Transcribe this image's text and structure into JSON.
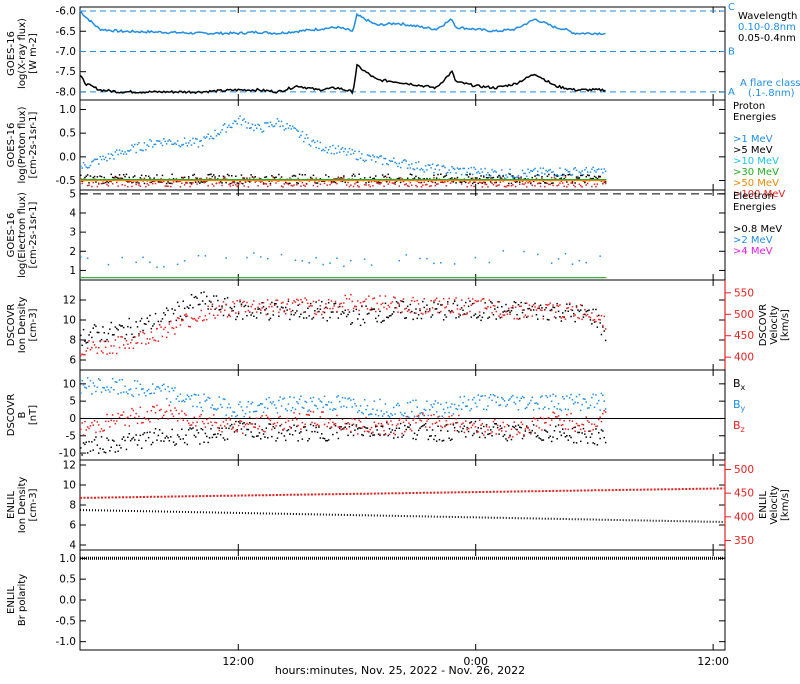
{
  "colors": {
    "blue": "#1f8ce6",
    "black": "#000000",
    "red": "#e62020",
    "cyan": "#19c8e6",
    "green": "#22aa22",
    "orange": "#e68c00",
    "magenta": "#e619e6"
  },
  "xaxis": {
    "label": "hours:minutes, Nov. 25, 2022 - Nov. 26, 2022",
    "ticks": [
      "12:00",
      "0:00",
      "12:00"
    ],
    "tick_hours": [
      12,
      24,
      36
    ],
    "range_hours": [
      4,
      36.6
    ],
    "data_end_hours": 30.6
  },
  "chart_data": [
    {
      "type": "line",
      "panel": "xray",
      "ylabel": [
        "GOES-16",
        "log(X-ray flux)",
        "[W m-2]"
      ],
      "ylim": [
        -8.2,
        -5.9
      ],
      "yticks": [
        -6.0,
        -6.5,
        -7.0,
        -7.5,
        -8.0
      ],
      "ytick_labels": [
        "-6.0",
        "-6.5",
        "-7.0",
        "-7.5",
        "-8.0"
      ],
      "flare_levels": [
        {
          "letter": "C",
          "value": -6
        },
        {
          "letter": "B",
          "value": -7
        },
        {
          "letter": "A",
          "value": -8
        }
      ],
      "legend": [
        "Wavelength",
        "0.10-0.8nm",
        "0.05-0.4nm"
      ],
      "annotation": [
        "A  flare class",
        "(.1-.8nm)"
      ],
      "series": [
        {
          "name": "0.10-0.8nm",
          "color": "blue",
          "x": [
            4,
            4.3,
            5,
            6,
            8,
            10,
            12,
            13,
            14,
            15,
            16,
            17,
            17.8,
            18,
            19,
            20,
            22,
            22.8,
            23,
            24,
            25,
            26,
            27,
            28,
            28.5,
            29,
            30,
            30.6
          ],
          "y": [
            -6.0,
            -6.15,
            -6.45,
            -6.5,
            -6.52,
            -6.55,
            -6.55,
            -6.52,
            -6.55,
            -6.5,
            -6.45,
            -6.4,
            -6.5,
            -6.1,
            -6.35,
            -6.3,
            -6.45,
            -6.2,
            -6.4,
            -6.45,
            -6.5,
            -6.45,
            -6.2,
            -6.4,
            -6.45,
            -6.55,
            -6.55,
            -6.55
          ]
        },
        {
          "name": "0.05-0.4nm",
          "color": "black",
          "x": [
            4,
            4.3,
            5,
            6,
            8,
            10,
            12,
            13,
            14,
            15,
            16,
            17,
            17.8,
            18,
            19,
            20,
            22,
            22.8,
            23,
            24,
            25,
            26,
            27,
            28,
            28.5,
            29,
            30,
            30.6
          ],
          "y": [
            -7.6,
            -7.8,
            -7.95,
            -8.0,
            -8.0,
            -8.0,
            -7.95,
            -7.95,
            -8.0,
            -7.85,
            -7.95,
            -7.9,
            -8.0,
            -7.35,
            -7.7,
            -7.75,
            -7.9,
            -7.5,
            -7.75,
            -7.85,
            -7.9,
            -7.8,
            -7.55,
            -7.85,
            -7.9,
            -7.95,
            -7.95,
            -7.95
          ]
        }
      ]
    },
    {
      "type": "scatter",
      "panel": "proton",
      "ylabel": [
        "GOES-16",
        "log(Proton flux)",
        "[cm-2s-1sr-1]"
      ],
      "ylim": [
        -0.7,
        1.2
      ],
      "yticks": [
        1.0,
        0.5,
        0.0,
        -0.5
      ],
      "ytick_labels": [
        "1.0",
        "0.5",
        "0.0",
        "-0.5"
      ],
      "legend": [
        "Proton",
        "Energies",
        ">1 MeV",
        ">5 MeV",
        ">10 MeV",
        ">30 MeV",
        ">50 MeV",
        ">100 MeV"
      ],
      "legend_colors": [
        "black",
        "black",
        "blue",
        "black",
        "cyan",
        "green",
        "orange",
        "red"
      ],
      "series": [
        {
          "name": ">1 MeV",
          "color": "blue",
          "x": [
            4,
            6,
            8,
            10,
            12,
            13,
            14,
            15,
            16,
            17,
            18,
            19,
            20,
            22,
            24,
            26,
            28,
            30,
            30.6
          ],
          "y": [
            -0.2,
            0.1,
            0.35,
            0.3,
            0.8,
            0.6,
            0.75,
            0.5,
            0.25,
            0.15,
            0.05,
            -0.05,
            -0.1,
            -0.25,
            -0.3,
            -0.35,
            -0.3,
            -0.3,
            -0.3
          ]
        },
        {
          "name": ">5 MeV",
          "color": "black",
          "x": [
            4,
            30.6
          ],
          "y": [
            -0.45,
            -0.45
          ]
        },
        {
          "name": ">100 MeV",
          "color": "red",
          "x": [
            4,
            30.6
          ],
          "y": [
            -0.52,
            -0.52
          ]
        }
      ]
    },
    {
      "type": "scatter",
      "panel": "electron",
      "ylabel": [
        "GOES-16",
        "log(Electron flux)",
        "[cm-2s-1sr-1]"
      ],
      "ylim": [
        0.5,
        5.2
      ],
      "yticks": [
        5,
        4,
        3,
        2,
        1
      ],
      "ytick_labels": [
        "5",
        "4",
        "3",
        "2",
        "1"
      ],
      "legend": [
        "Electron",
        "Energies",
        ">0.8 MeV",
        ">2 MeV",
        ">4 MeV"
      ],
      "legend_colors": [
        "black",
        "black",
        "black",
        "blue",
        "magenta"
      ],
      "series": [
        {
          "name": ">2 MeV",
          "color": "blue",
          "x": [
            4,
            6,
            8,
            10,
            12,
            14,
            16,
            18,
            20,
            22,
            24,
            26,
            28,
            30,
            30.6
          ],
          "y": [
            1.5,
            1.7,
            1.4,
            1.6,
            1.7,
            1.6,
            1.5,
            1.5,
            1.6,
            1.4,
            1.7,
            1.8,
            1.6,
            1.7,
            1.3
          ]
        }
      ]
    },
    {
      "type": "scatter",
      "panel": "dscovr_density",
      "ylabel": [
        "DSCOVR",
        "Ion Density",
        "[cm-3]"
      ],
      "ylim": [
        5,
        14
      ],
      "yticks": [
        12,
        10,
        8,
        6
      ],
      "ytick_labels": [
        "12",
        "10",
        "8",
        "6"
      ],
      "ylabel_right": [
        "DSCOVR",
        "Velocity",
        "[km/s]"
      ],
      "ylim_right": [
        370,
        580
      ],
      "yticks_right": [
        550,
        500,
        450,
        400
      ],
      "ytick_labels_right": [
        "550",
        "500",
        "450",
        "400"
      ],
      "series": [
        {
          "name": "Ion Density",
          "color": "black",
          "x": [
            4,
            6,
            8,
            10,
            12,
            14,
            16,
            18,
            20,
            22,
            24,
            26,
            28,
            30,
            30.6
          ],
          "y": [
            8.5,
            9,
            10,
            12,
            11,
            11,
            11,
            10.5,
            11,
            11,
            11,
            11,
            11,
            10.5,
            8.5
          ]
        },
        {
          "name": "Velocity",
          "color": "red",
          "x": [
            4,
            6,
            8,
            10,
            12,
            14,
            16,
            18,
            20,
            22,
            24,
            26,
            28,
            30,
            30.6
          ],
          "y": [
            420,
            430,
            460,
            500,
            520,
            520,
            520,
            530,
            525,
            520,
            520,
            510,
            510,
            505,
            480
          ]
        }
      ]
    },
    {
      "type": "scatter",
      "panel": "dscovr_b",
      "ylabel": [
        "DSCOVR",
        "B",
        "[nT]"
      ],
      "ylim": [
        -12,
        14
      ],
      "yticks": [
        10,
        5,
        0,
        -5,
        -10
      ],
      "ytick_labels": [
        "10",
        "5",
        "0",
        "-5",
        "-10"
      ],
      "legend": [
        "Bx",
        "By",
        "Bz"
      ],
      "legend_colors": [
        "black",
        "blue",
        "red"
      ],
      "series": [
        {
          "name": "Bx",
          "color": "black",
          "x": [
            4,
            6,
            8,
            10,
            12,
            14,
            16,
            18,
            20,
            22,
            24,
            26,
            28,
            30,
            30.6
          ],
          "y": [
            -8,
            -7,
            -5,
            -5,
            -3,
            -4,
            -4,
            -3,
            -3,
            -4,
            -3,
            -4,
            -4,
            -5,
            -6
          ]
        },
        {
          "name": "By",
          "color": "blue",
          "x": [
            4,
            6,
            8,
            10,
            12,
            14,
            16,
            18,
            20,
            22,
            24,
            26,
            28,
            30,
            30.6
          ],
          "y": [
            10,
            9,
            8,
            5,
            3,
            4,
            5,
            4,
            3,
            3,
            5,
            5,
            5,
            5,
            5
          ]
        },
        {
          "name": "Bz",
          "color": "red",
          "x": [
            4,
            6,
            8,
            10,
            12,
            14,
            16,
            18,
            20,
            22,
            24,
            26,
            28,
            30,
            30.6
          ],
          "y": [
            -3,
            0,
            2,
            0,
            -2,
            -1,
            0,
            -2,
            -2,
            0,
            -2,
            -3,
            0,
            -2,
            2
          ]
        }
      ]
    },
    {
      "type": "line",
      "panel": "enlil_density",
      "ylabel": [
        "ENLIL",
        "Ion Density",
        "[cm-3]"
      ],
      "ylim": [
        3.5,
        12.5
      ],
      "yticks": [
        12,
        10,
        8,
        6,
        4
      ],
      "ytick_labels": [
        "12",
        "10",
        "8",
        "6",
        "4"
      ],
      "ylabel_right": [
        "ENLIL",
        "Velocity",
        "[km/s]"
      ],
      "ylim_right": [
        330,
        520
      ],
      "yticks_right": [
        500,
        450,
        400,
        350
      ],
      "ytick_labels_right": [
        "500",
        "450",
        "400",
        "350"
      ],
      "series": [
        {
          "name": "Ion Density",
          "color": "black",
          "x": [
            4,
            36.6
          ],
          "y": [
            7.5,
            6.3
          ]
        },
        {
          "name": "Velocity",
          "color": "red",
          "x": [
            4,
            36.6
          ],
          "y": [
            440,
            460
          ]
        }
      ]
    },
    {
      "type": "line",
      "panel": "enlil_polarity",
      "ylabel": [
        "ENLIL",
        "Br polarity"
      ],
      "ylim": [
        -1.2,
        1.2
      ],
      "yticks": [
        1.0,
        0.5,
        0.0,
        -0.5,
        -1.0
      ],
      "ytick_labels": [
        "1.0",
        "0.5",
        "0.0",
        "-0.5",
        "-1.0"
      ],
      "series": [
        {
          "name": "Br polarity",
          "color": "black",
          "x": [
            4,
            36.6
          ],
          "y": [
            1,
            1
          ]
        }
      ]
    }
  ]
}
